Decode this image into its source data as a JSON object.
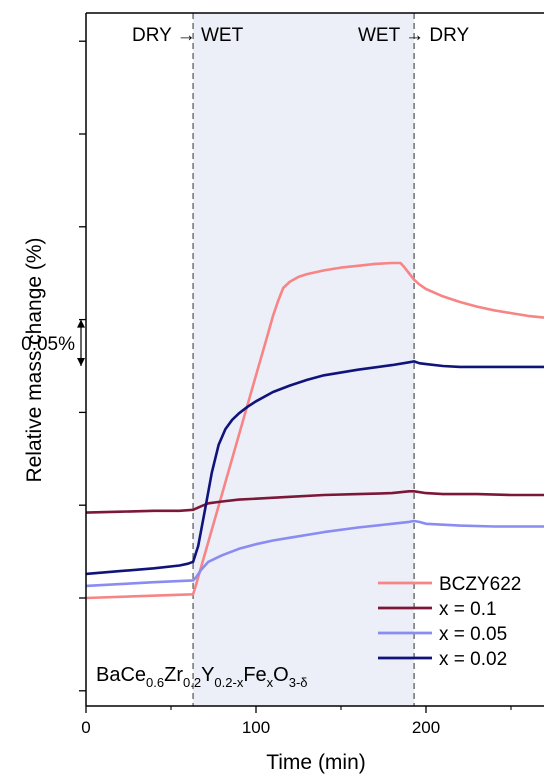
{
  "chart_data": {
    "type": "line",
    "title": "",
    "xlabel": "Time (min)",
    "ylabel": "Relative mass change (%)",
    "xlim": [
      0,
      270
    ],
    "xticks": [
      "0",
      "100",
      "200"
    ],
    "scale_bar_label": "0.05%",
    "scale_bar_value": 0.05,
    "wet_region": [
      63,
      193
    ],
    "annotations": {
      "dry_to_wet": "DRY → WET",
      "wet_to_dry": "WET → DRY"
    },
    "formula": {
      "p1": "BaCe",
      "s1": "0.6",
      "p2": "Zr",
      "s2": "0.2",
      "p3": "Y",
      "s3": "0.2-x",
      "p4": "Fe",
      "s4": "x",
      "p5": "O",
      "s5": "3-δ"
    },
    "series": [
      {
        "name": "BCZY622",
        "color": "#f78585",
        "x": [
          0,
          63,
          65,
          70,
          80,
          90,
          100,
          106,
          110,
          113,
          116,
          120,
          125,
          130,
          140,
          150,
          160,
          170,
          180,
          185,
          187,
          190,
          193,
          196,
          200,
          210,
          220,
          230,
          240,
          250,
          260,
          270
        ],
        "y": [
          0.0,
          0.004,
          0.016,
          0.048,
          0.112,
          0.176,
          0.24,
          0.278,
          0.304,
          0.32,
          0.334,
          0.341,
          0.346,
          0.349,
          0.353,
          0.356,
          0.358,
          0.36,
          0.361,
          0.361,
          0.357,
          0.35,
          0.343,
          0.338,
          0.333,
          0.325,
          0.319,
          0.314,
          0.31,
          0.307,
          0.304,
          0.302
        ]
      },
      {
        "name": "x = 0.1",
        "color": "#7b1838",
        "x": [
          0,
          20,
          40,
          55,
          63,
          68,
          72,
          80,
          90,
          100,
          120,
          140,
          160,
          180,
          190,
          193,
          200,
          210,
          230,
          250,
          270
        ],
        "y": [
          0.092,
          0.093,
          0.094,
          0.094,
          0.095,
          0.099,
          0.102,
          0.104,
          0.106,
          0.107,
          0.109,
          0.111,
          0.112,
          0.113,
          0.115,
          0.115,
          0.113,
          0.112,
          0.112,
          0.111,
          0.111
        ]
      },
      {
        "name": "x = 0.05",
        "color": "#8a8cf2",
        "x": [
          0,
          20,
          40,
          63,
          65,
          68,
          72,
          80,
          90,
          100,
          110,
          120,
          140,
          160,
          180,
          190,
          193,
          196,
          200,
          210,
          220,
          240,
          260,
          270
        ],
        "y": [
          0.013,
          0.015,
          0.017,
          0.019,
          0.023,
          0.031,
          0.039,
          0.046,
          0.053,
          0.058,
          0.062,
          0.065,
          0.071,
          0.076,
          0.08,
          0.082,
          0.083,
          0.082,
          0.08,
          0.079,
          0.078,
          0.077,
          0.077,
          0.077
        ]
      },
      {
        "name": "x = 0.02",
        "color": "#10137a",
        "x": [
          0,
          20,
          40,
          55,
          60,
          63,
          66,
          70,
          74,
          78,
          82,
          86,
          90,
          95,
          100,
          110,
          120,
          130,
          140,
          160,
          180,
          190,
          193,
          196,
          200,
          210,
          220,
          240,
          260,
          270
        ],
        "y": [
          0.026,
          0.029,
          0.032,
          0.035,
          0.037,
          0.039,
          0.056,
          0.095,
          0.135,
          0.165,
          0.182,
          0.192,
          0.199,
          0.206,
          0.212,
          0.222,
          0.229,
          0.235,
          0.24,
          0.246,
          0.251,
          0.254,
          0.255,
          0.253,
          0.252,
          0.25,
          0.249,
          0.249,
          0.249,
          0.249
        ]
      }
    ]
  }
}
